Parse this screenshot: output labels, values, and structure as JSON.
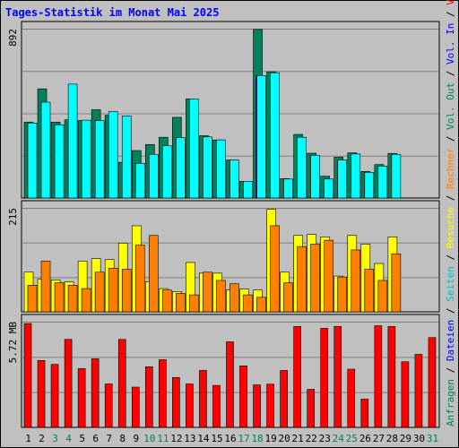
{
  "chart_data": {
    "type": "bar",
    "title": "Tages-Statistik im Monat Mai 2025",
    "categories": [
      "1",
      "2",
      "3",
      "4",
      "5",
      "6",
      "7",
      "8",
      "9",
      "10",
      "11",
      "12",
      "13",
      "14",
      "15",
      "16",
      "17",
      "18",
      "19",
      "20",
      "21",
      "22",
      "23",
      "24",
      "25",
      "26",
      "27",
      "28",
      "29",
      "30",
      "31"
    ],
    "weekend_days": [
      "3",
      "4",
      "10",
      "11",
      "17",
      "18",
      "24",
      "25",
      "31"
    ],
    "colors": {
      "background": "#c0c0c0",
      "plot": "#c0c0c0",
      "grid": "#808080",
      "title": "#0000ff",
      "weekday_label": "#000000",
      "weekend_label": "#00805c",
      "separator": "#000000"
    },
    "panels": [
      {
        "ymax_label": "892",
        "ylim": [
          0,
          892
        ],
        "gridlines": 4,
        "series": [
          {
            "name": "Anfragen",
            "color": "#00805c",
            "values": [
              400,
              575,
              400,
              412,
              408,
              465,
              436,
              188,
              250,
              282,
              320,
              425,
              522,
              328,
              306,
              200,
              88,
              888,
              665,
              102,
              335,
              236,
              115,
              215,
              238,
              140,
              176,
              235,
              0,
              0,
              0
            ]
          },
          {
            "name": "Dateien",
            "color": "#0000ff",
            "values": [
              0,
              0,
              0,
              0,
              0,
              0,
              0,
              0,
              0,
              0,
              0,
              0,
              0,
              0,
              0,
              0,
              0,
              642,
              0,
              0,
              0,
              0,
              0,
              0,
              0,
              0,
              0,
              0,
              0,
              0,
              0
            ]
          },
          {
            "name": "Seiten",
            "color": "#00ffff",
            "values": [
              395,
              505,
              386,
              600,
              410,
              408,
              455,
              432,
              182,
              230,
              275,
              318,
              522,
              322,
              306,
              200,
              88,
              645,
              660,
              100,
              320,
              225,
              100,
              200,
              232,
              135,
              168,
              230,
              0,
              0,
              0
            ]
          }
        ]
      },
      {
        "ymax_label": "215",
        "ylim": [
          0,
          215
        ],
        "gridlines": 3,
        "series": [
          {
            "name": "Besuche",
            "color": "#ffff00",
            "values": [
              82,
              68,
              66,
              62,
              105,
              110,
              108,
              142,
              178,
              62,
              48,
              42,
              102,
              80,
              80,
              45,
              47,
              45,
              212,
              82,
              158,
              160,
              155,
              74,
              158,
              140,
              100,
              155,
              0,
              0,
              0
            ]
          },
          {
            "name": "Rechner",
            "color": "#ff8000",
            "values": [
              55,
              105,
              60,
              55,
              48,
              82,
              90,
              88,
              138,
              158,
              45,
              38,
              35,
              82,
              65,
              58,
              35,
              30,
              178,
              60,
              135,
              140,
              148,
              72,
              128,
              88,
              65,
              120,
              0,
              0,
              0
            ]
          }
        ]
      },
      {
        "ymax_label": "5.72 MB",
        "ylim": [
          0,
          5.72
        ],
        "gridlines": 3,
        "series": [
          {
            "name": "Volumen",
            "color": "#ff0000",
            "values": [
              5.62,
              3.62,
              3.41,
              4.76,
              3.18,
              3.71,
              2.35,
              4.76,
              2.18,
              3.28,
              3.66,
              2.7,
              2.35,
              3.08,
              2.27,
              4.63,
              3.33,
              2.3,
              2.34,
              3.08,
              5.46,
              2.06,
              5.36,
              5.46,
              3.15,
              1.53,
              5.5,
              5.46,
              3.55,
              3.95,
              4.86
            ]
          }
        ]
      }
    ],
    "right_labels": [
      {
        "text": "Anfragen",
        "color": "#00805c"
      },
      {
        "text": " / ",
        "color": "#000000"
      },
      {
        "text": "Dateien",
        "color": "#0000ff"
      },
      {
        "text": " / ",
        "color": "#000000"
      },
      {
        "text": "Seiten",
        "color": "#00c0c0"
      },
      {
        "text": " / ",
        "color": "#000000"
      },
      {
        "text": "Besuche",
        "color": "#ffff00"
      },
      {
        "text": " / ",
        "color": "#000000"
      },
      {
        "text": "Rechner",
        "color": "#ff8000"
      },
      {
        "text": " / ",
        "color": "#000000"
      },
      {
        "text": "Vol. Out",
        "color": "#00805c"
      },
      {
        "text": " / ",
        "color": "#000000"
      },
      {
        "text": "Vol. In",
        "color": "#0000ff"
      },
      {
        "text": " / ",
        "color": "#000000"
      },
      {
        "text": "Volumen",
        "color": "#ff0000"
      }
    ]
  }
}
